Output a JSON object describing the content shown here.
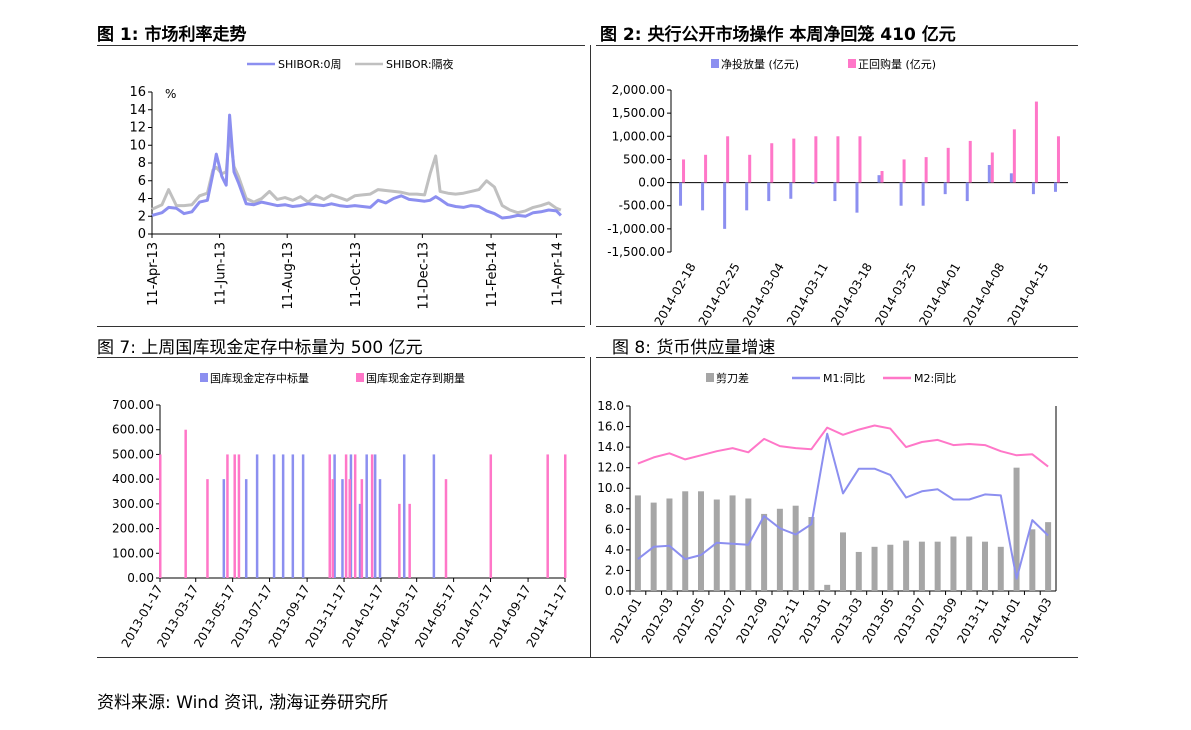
{
  "titles": {
    "c1": "图 1:  市场利率走势",
    "c2": "图 2:  央行公开市场操作  本周净回笼 410 亿元",
    "c7": "图  7:  上周国库现金定存中标量为 500 亿元",
    "c8": "图  8:  货币供应量增速"
  },
  "source": "资料来源:  Wind 资讯,  渤海证券研究所",
  "chart_data": [
    {
      "id": "c1",
      "type": "line",
      "unit_label": "%",
      "ylim": [
        0,
        16
      ],
      "yticks": [
        0,
        2,
        4,
        6,
        8,
        10,
        12,
        14,
        16
      ],
      "x_tick_labels": [
        "11-Apr-13",
        "11-Jun-13",
        "11-Aug-13",
        "11-Oct-13",
        "11-Dec-13",
        "11-Feb-14",
        "11-Apr-14"
      ],
      "x": [
        "2013-04-11",
        "2013-04-20",
        "2013-04-26",
        "2013-05-03",
        "2013-05-10",
        "2013-05-17",
        "2013-05-24",
        "2013-05-31",
        "2013-06-05",
        "2013-06-08",
        "2013-06-13",
        "2013-06-17",
        "2013-06-20",
        "2013-06-24",
        "2013-06-28",
        "2013-07-05",
        "2013-07-12",
        "2013-07-19",
        "2013-07-26",
        "2013-08-02",
        "2013-08-09",
        "2013-08-16",
        "2013-08-23",
        "2013-08-30",
        "2013-09-06",
        "2013-09-13",
        "2013-09-20",
        "2013-09-27",
        "2013-10-04",
        "2013-10-11",
        "2013-10-18",
        "2013-10-25",
        "2013-11-01",
        "2013-11-08",
        "2013-11-15",
        "2013-11-22",
        "2013-11-29",
        "2013-12-06",
        "2013-12-13",
        "2013-12-18",
        "2013-12-23",
        "2013-12-27",
        "2014-01-03",
        "2014-01-10",
        "2014-01-17",
        "2014-01-24",
        "2014-01-31",
        "2014-02-07",
        "2014-02-14",
        "2014-02-21",
        "2014-02-28",
        "2014-03-07",
        "2014-03-14",
        "2014-03-21",
        "2014-03-28",
        "2014-04-04",
        "2014-04-11",
        "2014-04-15"
      ],
      "series": [
        {
          "name": "SHIBOR:0周",
          "color": "#8c8ff0",
          "values": [
            2.1,
            2.4,
            3.0,
            2.9,
            2.3,
            2.5,
            3.6,
            3.8,
            6.8,
            9.0,
            6.5,
            5.5,
            13.4,
            7.0,
            5.8,
            3.4,
            3.3,
            3.6,
            3.4,
            3.2,
            3.3,
            3.1,
            3.2,
            3.4,
            3.3,
            3.2,
            3.4,
            3.2,
            3.1,
            3.2,
            3.1,
            3.0,
            3.8,
            3.5,
            4.0,
            4.3,
            3.9,
            3.8,
            3.7,
            3.8,
            4.2,
            3.9,
            3.3,
            3.1,
            3.0,
            3.2,
            3.1,
            2.6,
            2.3,
            1.8,
            1.9,
            2.1,
            2.0,
            2.4,
            2.5,
            2.7,
            2.6,
            2.1
          ]
        },
        {
          "name": "SHIBOR:隔夜",
          "color": "#c0c0c0",
          "values": [
            2.8,
            3.3,
            5.0,
            3.2,
            3.2,
            3.3,
            4.3,
            4.6,
            7.2,
            7.5,
            6.8,
            7.0,
            11.5,
            7.6,
            6.5,
            4.0,
            3.6,
            4.0,
            4.8,
            3.9,
            4.1,
            3.8,
            4.2,
            3.6,
            4.3,
            3.9,
            4.4,
            4.1,
            3.8,
            4.3,
            4.4,
            4.5,
            5.0,
            4.9,
            4.8,
            4.7,
            4.5,
            4.5,
            4.4,
            6.8,
            8.8,
            4.8,
            4.6,
            4.5,
            4.6,
            4.8,
            5.0,
            6.0,
            5.3,
            3.2,
            2.7,
            2.4,
            2.6,
            3.0,
            3.2,
            3.5,
            2.9,
            2.7
          ]
        }
      ]
    },
    {
      "id": "c2",
      "type": "bar",
      "ylim": [
        -1500,
        2000
      ],
      "yticks": [
        -1500,
        -1000,
        -500,
        0,
        500,
        1000,
        1500,
        2000
      ],
      "ytick_labels": [
        "-1,500.00",
        "-1,000.00",
        "-500.00",
        "0.00",
        "500.00",
        "1,000.00",
        "1,500.00",
        "2,000.00"
      ],
      "x_tick_labels": [
        "2014-02-18",
        "2014-02-25",
        "2014-03-04",
        "2014-03-11",
        "2014-03-18",
        "2014-03-25",
        "2014-04-01",
        "2014-04-08",
        "2014-04-15"
      ],
      "series": [
        {
          "name": "净投放量 (亿元)",
          "color": "#8c8ff0",
          "values": [
            -500,
            -600,
            -1000,
            -600,
            -400,
            -350,
            -30,
            -400,
            -650,
            160,
            -500,
            -500,
            -250,
            -400,
            380,
            200,
            -250,
            -200
          ]
        },
        {
          "name": "正回购量 (亿元)",
          "color": "#ff77c8",
          "values": [
            500,
            600,
            1000,
            600,
            850,
            950,
            1000,
            1000,
            1000,
            250,
            500,
            550,
            750,
            900,
            650,
            1150,
            1750,
            1000
          ]
        }
      ]
    },
    {
      "id": "c7",
      "type": "bar",
      "ylim": [
        0,
        700
      ],
      "yticks": [
        0,
        100,
        200,
        300,
        400,
        500,
        600,
        700
      ],
      "ytick_labels": [
        "0.00",
        "100.00",
        "200.00",
        "300.00",
        "400.00",
        "500.00",
        "600.00",
        "700.00"
      ],
      "x_tick_labels": [
        "2013-01-17",
        "2013-03-17",
        "2013-05-17",
        "2013-07-17",
        "2013-09-17",
        "2013-11-17",
        "2014-01-17",
        "2014-03-17",
        "2014-05-17",
        "2014-07-17",
        "2014-09-17",
        "2014-11-17"
      ],
      "x_range": [
        "2013-01-17",
        "2014-11-17"
      ],
      "series": [
        {
          "name": "国库现金定存中标量",
          "color": "#8c8ff0",
          "bars": [
            [
              "2013-05-02",
              400
            ],
            [
              "2013-06-08",
              400
            ],
            [
              "2013-06-26",
              500
            ],
            [
              "2013-07-24",
              500
            ],
            [
              "2013-08-08",
              500
            ],
            [
              "2013-08-24",
              500
            ],
            [
              "2013-09-10",
              500
            ],
            [
              "2013-11-01",
              500
            ],
            [
              "2013-11-14",
              400
            ],
            [
              "2013-11-28",
              500
            ],
            [
              "2013-12-13",
              300
            ],
            [
              "2013-12-24",
              500
            ],
            [
              "2014-01-07",
              500
            ],
            [
              "2014-01-15",
              400
            ],
            [
              "2014-02-24",
              500
            ],
            [
              "2014-04-14",
              500
            ]
          ]
        },
        {
          "name": "国库现金定存到期量",
          "color": "#ff77c8",
          "bars": [
            [
              "2013-01-17",
              500
            ],
            [
              "2013-02-28",
              600
            ],
            [
              "2013-04-05",
              400
            ],
            [
              "2013-05-08",
              500
            ],
            [
              "2013-05-20",
              500
            ],
            [
              "2013-05-27",
              500
            ],
            [
              "2013-10-24",
              500
            ],
            [
              "2013-10-29",
              400
            ],
            [
              "2013-11-20",
              500
            ],
            [
              "2013-11-26",
              400
            ],
            [
              "2013-12-05",
              500
            ],
            [
              "2013-12-16",
              400
            ],
            [
              "2014-01-02",
              500
            ],
            [
              "2014-02-16",
              300
            ],
            [
              "2014-03-05",
              300
            ],
            [
              "2014-05-04",
              400
            ],
            [
              "2014-07-17",
              500
            ],
            [
              "2014-10-19",
              500
            ],
            [
              "2014-11-17",
              500
            ]
          ]
        }
      ]
    },
    {
      "id": "c8",
      "type": "bar_line",
      "ylim": [
        0,
        18
      ],
      "yticks": [
        0,
        2,
        4,
        6,
        8,
        10,
        12,
        14,
        16,
        18
      ],
      "ytick_labels": [
        "0.0",
        "2.0",
        "4.0",
        "6.0",
        "8.0",
        "10.0",
        "12.0",
        "14.0",
        "16.0",
        "18.0"
      ],
      "categories": [
        "2012-01",
        "2012-02",
        "2012-03",
        "2012-04",
        "2012-05",
        "2012-06",
        "2012-07",
        "2012-08",
        "2012-09",
        "2012-10",
        "2012-11",
        "2012-12",
        "2013-01",
        "2013-02",
        "2013-03",
        "2013-04",
        "2013-05",
        "2013-06",
        "2013-07",
        "2013-08",
        "2013-09",
        "2013-10",
        "2013-11",
        "2013-12",
        "2014-01",
        "2014-02",
        "2014-03"
      ],
      "x_tick_labels": [
        "2012-01",
        "2012-03",
        "2012-05",
        "2012-07",
        "2012-09",
        "2012-11",
        "2013-01",
        "2013-03",
        "2013-05",
        "2013-07",
        "2013-09",
        "2013-11",
        "2014-01",
        "2014-03"
      ],
      "series": [
        {
          "name": "剪刀差",
          "kind": "bar",
          "color": "#a6a6a6",
          "values": [
            9.3,
            8.6,
            9.0,
            9.7,
            9.7,
            8.9,
            9.3,
            9.0,
            7.5,
            8.0,
            8.3,
            7.2,
            0.6,
            5.7,
            3.8,
            4.3,
            4.5,
            4.9,
            4.8,
            4.8,
            5.3,
            5.3,
            4.8,
            4.3,
            12.0,
            6.0,
            6.7
          ]
        },
        {
          "name": "M1:同比",
          "kind": "line",
          "color": "#8c8ff0",
          "values": [
            3.1,
            4.3,
            4.4,
            3.1,
            3.5,
            4.7,
            4.6,
            4.5,
            7.3,
            6.1,
            5.5,
            6.5,
            15.3,
            9.5,
            11.9,
            11.9,
            11.3,
            9.1,
            9.7,
            9.9,
            8.9,
            8.9,
            9.4,
            9.3,
            1.2,
            6.9,
            5.4
          ]
        },
        {
          "name": "M2:同比",
          "kind": "line",
          "color": "#ff77c8",
          "values": [
            12.4,
            13.0,
            13.4,
            12.8,
            13.2,
            13.6,
            13.9,
            13.5,
            14.8,
            14.1,
            13.9,
            13.8,
            15.9,
            15.2,
            15.7,
            16.1,
            15.8,
            14.0,
            14.5,
            14.7,
            14.2,
            14.3,
            14.2,
            13.6,
            13.2,
            13.3,
            12.1
          ]
        }
      ]
    }
  ]
}
